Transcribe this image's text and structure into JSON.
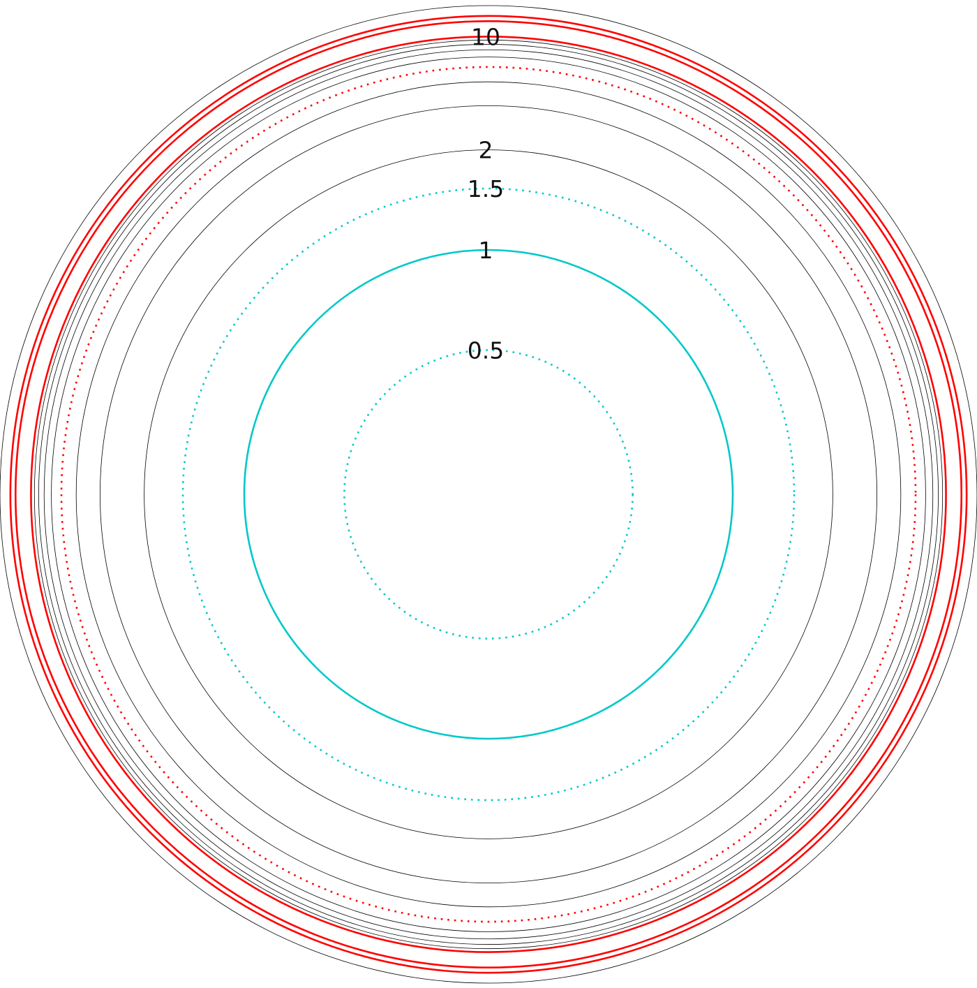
{
  "chart_data": {
    "type": "polar-circles",
    "radial_scale": "arctan",
    "grid": true,
    "colors": {
      "grid": "#000000",
      "cyan": "#00c8c8",
      "red": "#ff0000"
    },
    "circles": [
      {
        "value": 0.5,
        "color": "cyan",
        "style": "dotted",
        "label": "0.5"
      },
      {
        "value": 1,
        "color": "cyan",
        "style": "solid",
        "label": "1"
      },
      {
        "value": 1.5,
        "color": "cyan",
        "style": "dotted",
        "label": "1.5"
      },
      {
        "value": 2,
        "color": "grid",
        "style": "thin",
        "label": "2"
      },
      {
        "value": 3,
        "color": "grid",
        "style": "thin"
      },
      {
        "value": 4,
        "color": "grid",
        "style": "thin"
      },
      {
        "value": 5,
        "color": "red",
        "style": "dotted"
      },
      {
        "value": 6,
        "color": "grid",
        "style": "thin"
      },
      {
        "value": 7,
        "color": "grid",
        "style": "thin"
      },
      {
        "value": 8,
        "color": "grid",
        "style": "thin"
      },
      {
        "value": 9,
        "color": "grid",
        "style": "thin"
      },
      {
        "value": 10,
        "color": "red",
        "style": "solid",
        "label": "10"
      },
      {
        "value": 20,
        "color": "red",
        "style": "solid"
      },
      {
        "value": 30,
        "color": "red",
        "style": "solid"
      },
      {
        "value": "Infinity",
        "color": "grid",
        "style": "thin"
      }
    ]
  }
}
